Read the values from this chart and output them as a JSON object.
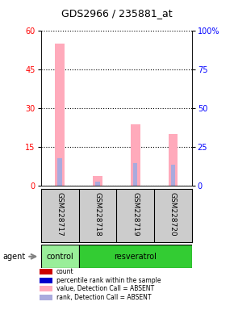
{
  "title": "GDS2966 / 235881_at",
  "samples": [
    "GSM228717",
    "GSM228718",
    "GSM228719",
    "GSM228720"
  ],
  "agent_groups": [
    "control",
    "resveratrol",
    "resveratrol",
    "resveratrol"
  ],
  "ylim_left": [
    0,
    60
  ],
  "ylim_right": [
    0,
    100
  ],
  "yticks_left": [
    0,
    15,
    30,
    45,
    60
  ],
  "yticks_right": [
    0,
    25,
    50,
    75,
    100
  ],
  "ytick_right_labels": [
    "0",
    "25",
    "50",
    "75",
    "100%"
  ],
  "bar_positions": [
    0,
    1,
    2,
    3
  ],
  "count_absent_values": [
    55.0,
    4.0,
    24.0,
    20.0
  ],
  "rank_absent_values": [
    18.0,
    3.0,
    15.0,
    14.0
  ],
  "color_count": "#cc0000",
  "color_rank": "#0000cc",
  "color_count_absent": "#ffaabb",
  "color_rank_absent": "#aaaadd",
  "bg_control": "#99ee99",
  "bg_resveratrol": "#33cc33",
  "bg_sample_label": "#cccccc",
  "pink_bar_width": 0.25,
  "rank_bar_width": 0.12
}
